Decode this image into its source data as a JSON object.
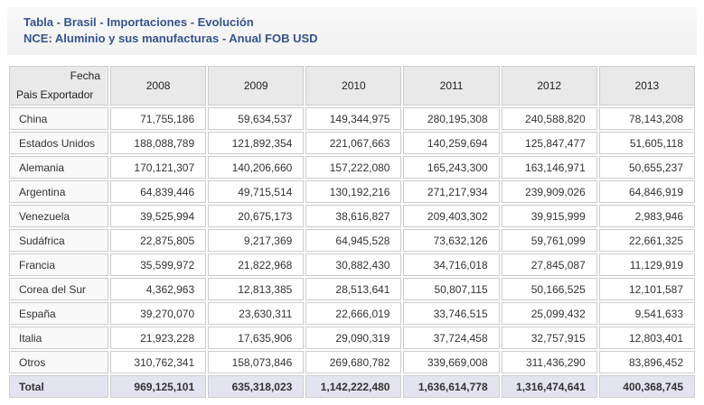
{
  "report": {
    "title_line1": "Tabla - Brasil - Importaciones - Evolución",
    "title_line2": "NCE: Aluminio y sus manufacturas - Anual FOB USD"
  },
  "table": {
    "corner_top": "Fecha",
    "corner_bottom": "Pais Exportador",
    "years": [
      "2008",
      "2009",
      "2010",
      "2011",
      "2012",
      "2013"
    ],
    "rows": [
      {
        "label": "China",
        "values": [
          "71,755,186",
          "59,634,537",
          "149,344,975",
          "280,195,308",
          "240,588,820",
          "78,143,208"
        ]
      },
      {
        "label": "Estados Unidos",
        "values": [
          "188,088,789",
          "121,892,354",
          "221,067,663",
          "140,259,694",
          "125,847,477",
          "51,605,118"
        ]
      },
      {
        "label": "Alemania",
        "values": [
          "170,121,307",
          "140,206,660",
          "157,222,080",
          "165,243,300",
          "163,146,971",
          "50,655,237"
        ]
      },
      {
        "label": "Argentina",
        "values": [
          "64,839,446",
          "49,715,514",
          "130,192,216",
          "271,217,934",
          "239,909,026",
          "64,846,919"
        ]
      },
      {
        "label": "Venezuela",
        "values": [
          "39,525,994",
          "20,675,173",
          "38,616,827",
          "209,403,302",
          "39,915,999",
          "2,983,946"
        ]
      },
      {
        "label": "Sudáfrica",
        "values": [
          "22,875,805",
          "9,217,369",
          "64,945,528",
          "73,632,126",
          "59,761,099",
          "22,661,325"
        ]
      },
      {
        "label": "Francia",
        "values": [
          "35,599,972",
          "21,822,968",
          "30,882,430",
          "34,716,018",
          "27,845,087",
          "11,129,919"
        ]
      },
      {
        "label": "Corea del Sur",
        "values": [
          "4,362,963",
          "12,813,385",
          "28,513,641",
          "50,807,115",
          "50,166,525",
          "12,101,587"
        ]
      },
      {
        "label": "España",
        "values": [
          "39,270,070",
          "23,630,311",
          "22,666,019",
          "33,746,515",
          "25,099,432",
          "9,541,633"
        ]
      },
      {
        "label": "Italia",
        "values": [
          "21,923,228",
          "17,635,906",
          "29,090,319",
          "37,724,458",
          "32,757,915",
          "12,803,401"
        ]
      },
      {
        "label": "Otros",
        "values": [
          "310,762,341",
          "158,073,846",
          "269,680,782",
          "339,669,008",
          "311,436,290",
          "83,896,452"
        ]
      }
    ],
    "total": {
      "label": "Total",
      "values": [
        "969,125,101",
        "635,318,023",
        "1,142,222,480",
        "1,636,614,778",
        "1,316,474,641",
        "400,368,745"
      ]
    }
  },
  "colors": {
    "title_text": "#35548b",
    "header_bg": "#e9e9e9",
    "label_bg": "#f9f9f9",
    "total_bg": "#e4e4f0",
    "border": "#cccccc"
  },
  "chart_data": {
    "type": "table",
    "title": "Tabla - Brasil - Importaciones - Evolución",
    "subtitle": "NCE: Aluminio y sus manufacturas - Anual FOB USD",
    "unit": "FOB USD",
    "columns": [
      2008,
      2009,
      2010,
      2011,
      2012,
      2013
    ],
    "row_header": "Pais Exportador",
    "column_header": "Fecha",
    "series": [
      {
        "name": "China",
        "values": [
          71755186,
          59634537,
          149344975,
          280195308,
          240588820,
          78143208
        ]
      },
      {
        "name": "Estados Unidos",
        "values": [
          188088789,
          121892354,
          221067663,
          140259694,
          125847477,
          51605118
        ]
      },
      {
        "name": "Alemania",
        "values": [
          170121307,
          140206660,
          157222080,
          165243300,
          163146971,
          50655237
        ]
      },
      {
        "name": "Argentina",
        "values": [
          64839446,
          49715514,
          130192216,
          271217934,
          239909026,
          64846919
        ]
      },
      {
        "name": "Venezuela",
        "values": [
          39525994,
          20675173,
          38616827,
          209403302,
          39915999,
          2983946
        ]
      },
      {
        "name": "Sudáfrica",
        "values": [
          22875805,
          9217369,
          64945528,
          73632126,
          59761099,
          22661325
        ]
      },
      {
        "name": "Francia",
        "values": [
          35599972,
          21822968,
          30882430,
          34716018,
          27845087,
          11129919
        ]
      },
      {
        "name": "Corea del Sur",
        "values": [
          4362963,
          12813385,
          28513641,
          50807115,
          50166525,
          12101587
        ]
      },
      {
        "name": "España",
        "values": [
          39270070,
          23630311,
          22666019,
          33746515,
          25099432,
          9541633
        ]
      },
      {
        "name": "Italia",
        "values": [
          21923228,
          17635906,
          29090319,
          37724458,
          32757915,
          12803401
        ]
      },
      {
        "name": "Otros",
        "values": [
          310762341,
          158073846,
          269680782,
          339669008,
          311436290,
          83896452
        ]
      },
      {
        "name": "Total",
        "values": [
          969125101,
          635318023,
          1142222480,
          1636614778,
          1316474641,
          400368745
        ]
      }
    ]
  }
}
